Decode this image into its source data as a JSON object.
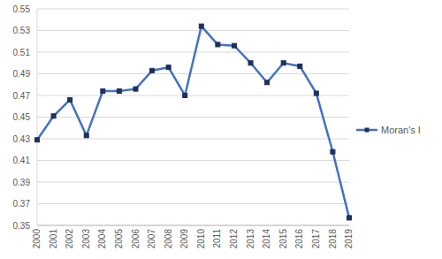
{
  "chart_data": {
    "type": "line",
    "categories": [
      "2000",
      "2001",
      "2002",
      "2003",
      "2004",
      "2005",
      "2006",
      "2007",
      "2008",
      "2009",
      "2010",
      "2011",
      "2012",
      "2013",
      "2014",
      "2015",
      "2016",
      "2017",
      "2018",
      "2019"
    ],
    "series": [
      {
        "name": "Moran's I",
        "color": "#4472c4",
        "marker": "square",
        "values": [
          0.429,
          0.451,
          0.466,
          0.433,
          0.474,
          0.474,
          0.476,
          0.493,
          0.496,
          0.47,
          0.534,
          0.517,
          0.516,
          0.5,
          0.482,
          0.5,
          0.497,
          0.472,
          0.418,
          0.357
        ]
      }
    ],
    "ylim": [
      0.35,
      0.55
    ],
    "yticks": [
      0.35,
      0.37,
      0.39,
      0.41,
      0.43,
      0.45,
      0.47,
      0.49,
      0.51,
      0.53,
      0.55
    ],
    "grid": true,
    "legend": "right"
  }
}
